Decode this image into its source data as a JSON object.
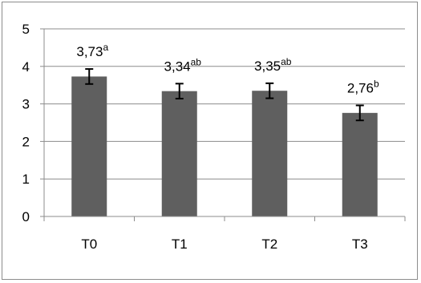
{
  "chart_data": {
    "type": "bar",
    "categories": [
      "T0",
      "T1",
      "T2",
      "T3"
    ],
    "values": [
      3.73,
      3.34,
      3.35,
      2.76
    ],
    "errors": [
      0.2,
      0.2,
      0.2,
      0.2
    ],
    "labels": [
      {
        "value": "3,73",
        "letters": "a"
      },
      {
        "value": "3,34",
        "letters": "ab"
      },
      {
        "value": "3,35",
        "letters": "ab"
      },
      {
        "value": "2,76",
        "letters": "b"
      }
    ],
    "y_ticks": [
      "0",
      "1",
      "2",
      "3",
      "4",
      "5"
    ],
    "ylim": [
      0,
      5
    ],
    "grid": true,
    "legend": "none",
    "title": "",
    "xlabel": "",
    "ylabel": "",
    "colors": {
      "bar": "#5f5f5f",
      "grid": "#8c8c8c",
      "axis": "#8c8c8c",
      "error": "#000000"
    }
  }
}
